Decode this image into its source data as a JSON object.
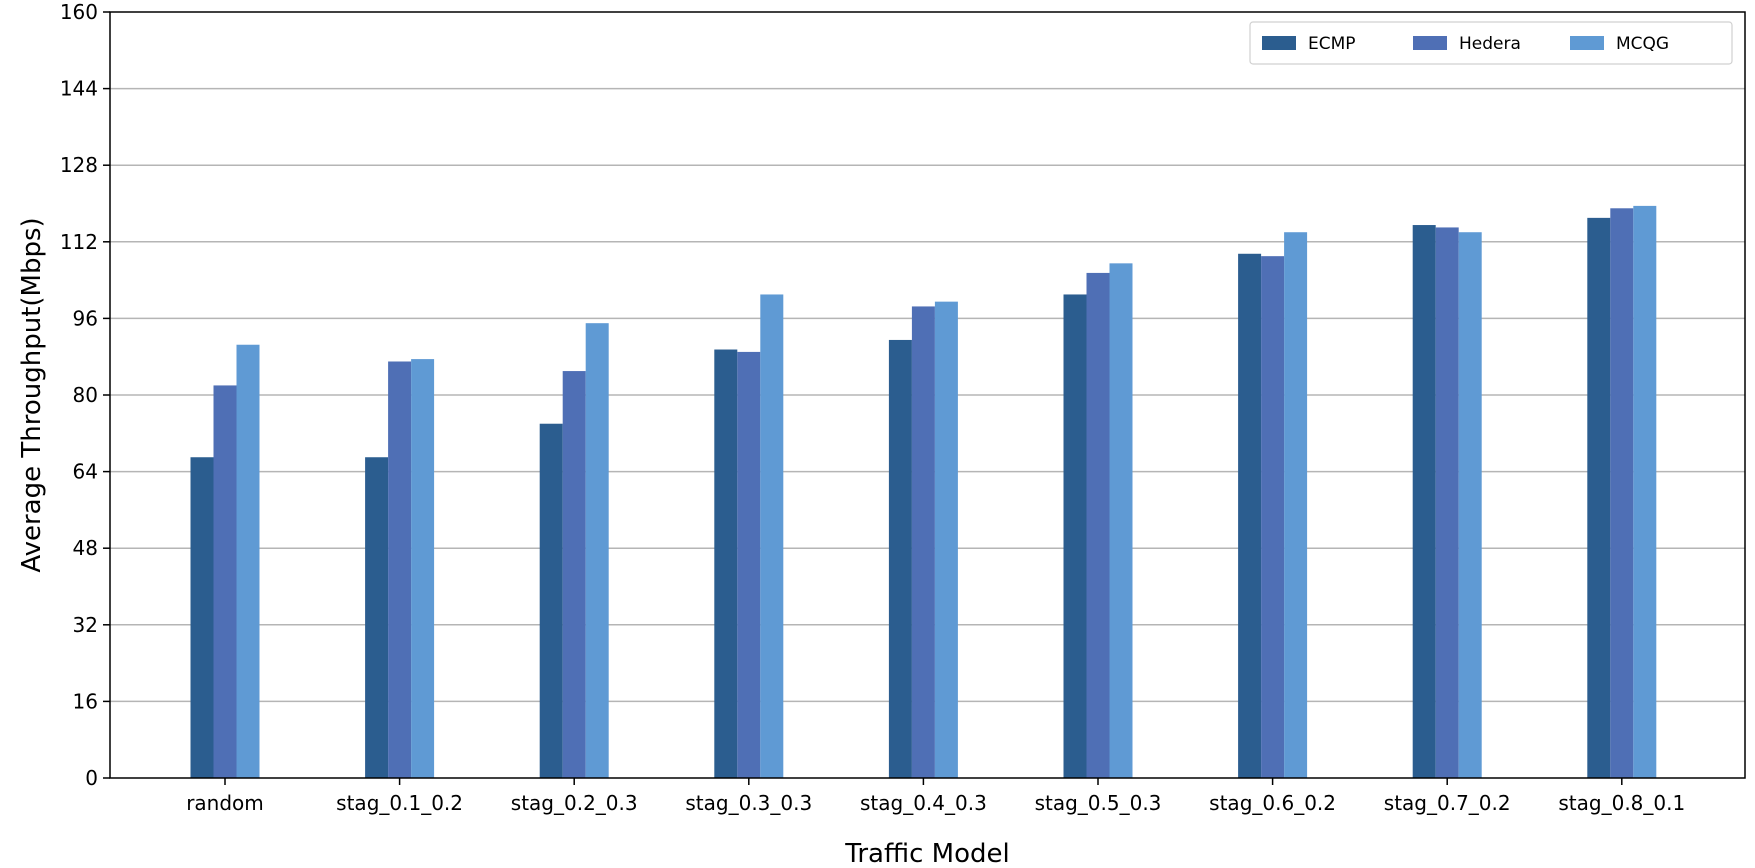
{
  "chart_data": {
    "type": "bar",
    "title": "",
    "xlabel": "Traffic Model",
    "ylabel": "Average Throughput(Mbps)",
    "ylim": [
      0,
      160
    ],
    "yticks": [
      0,
      16,
      32,
      48,
      64,
      80,
      96,
      112,
      128,
      144,
      160
    ],
    "grid": "horizontal",
    "legend_position": "top-right",
    "categories": [
      "random",
      "stag_0.1_0.2",
      "stag_0.2_0.3",
      "stag_0.3_0.3",
      "stag_0.4_0.3",
      "stag_0.5_0.3",
      "stag_0.6_0.2",
      "stag_0.7_0.2",
      "stag_0.8_0.1"
    ],
    "series": [
      {
        "name": "ECMP",
        "color": "#2b5d8f",
        "values": [
          67,
          67,
          74,
          89.5,
          91.5,
          101,
          109.5,
          115.5,
          117
        ]
      },
      {
        "name": "Hedera",
        "color": "#4f6fb5",
        "values": [
          82,
          87,
          85,
          89,
          98.5,
          105.5,
          109,
          115,
          119
        ]
      },
      {
        "name": "MCQG",
        "color": "#5f9ad4",
        "values": [
          90.5,
          87.5,
          95,
          101,
          99.5,
          107.5,
          114,
          114,
          119.5
        ]
      }
    ]
  }
}
